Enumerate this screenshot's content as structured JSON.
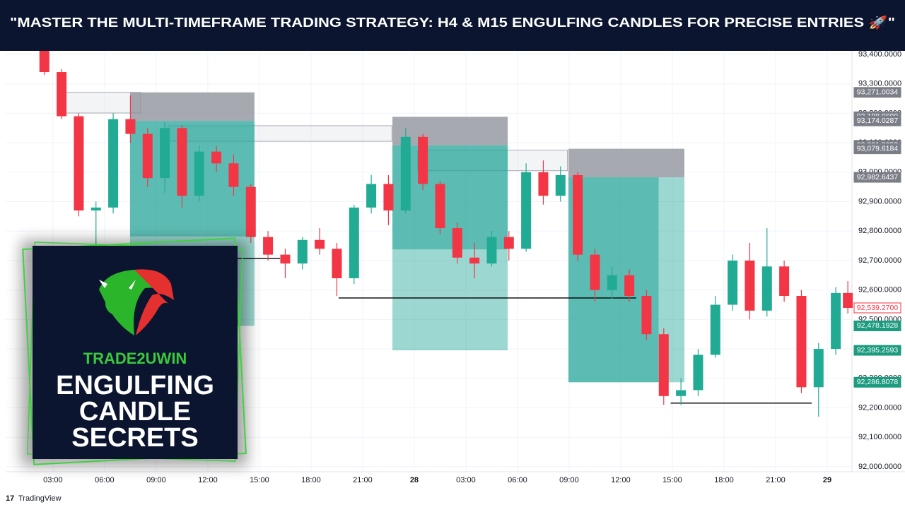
{
  "chart_data": {
    "type": "candlestick",
    "title": "\"MASTER THE MULTI-TIMEFRAME TRADING STRATEGY: H4 & M15 ENGULFING CANDLES FOR PRECISE ENTRIES 🚀\"",
    "watermark": "TradingView",
    "up_color": "#22ab94",
    "down_color": "#f23645",
    "grid": true,
    "x": [
      2.5,
      3.5,
      4.5,
      5.5,
      6.5,
      7.5,
      8.5,
      9.5,
      10.5,
      11.5,
      12.5,
      13.5,
      14.5,
      15.5,
      16.5,
      17.5,
      18.5,
      19.5,
      20.5,
      21.5,
      22.5,
      23.5,
      24.5,
      25.5,
      26.5,
      27.5,
      28.5,
      29.5,
      30.5,
      31.5,
      32.5,
      33.5,
      34.5,
      35.5,
      36.5,
      37.5,
      38.5,
      39.5,
      40.5,
      41.5,
      42.5,
      43.5,
      44.5,
      45.5,
      46.5,
      47.5,
      48.5,
      49.2
    ],
    "open": [
      93420,
      93340,
      93190,
      92870,
      92880,
      93180,
      93130,
      92980,
      93150,
      92920,
      93070,
      93030,
      92950,
      92780,
      92720,
      92690,
      92770,
      92740,
      92640,
      92880,
      92960,
      92870,
      93120,
      92960,
      92810,
      92710,
      92690,
      92780,
      92740,
      93000,
      92920,
      92990,
      92720,
      92600,
      92650,
      92580,
      92450,
      92240,
      92260,
      92380,
      92550,
      92700,
      92530,
      92680,
      92580,
      92270,
      92400,
      92590
    ],
    "high": [
      93440,
      93350,
      93200,
      92900,
      93200,
      93260,
      93150,
      93170,
      93160,
      93090,
      93090,
      93060,
      92960,
      92800,
      92740,
      92780,
      92810,
      92760,
      92890,
      92990,
      92990,
      93150,
      93130,
      92970,
      92830,
      92760,
      92800,
      92800,
      93030,
      93040,
      93020,
      93000,
      92740,
      92680,
      92670,
      92600,
      92470,
      92300,
      92400,
      92580,
      92720,
      92760,
      92810,
      92700,
      92600,
      92420,
      92610,
      92630
    ],
    "low": [
      93330,
      93180,
      92850,
      92630,
      92860,
      93100,
      92950,
      92930,
      92880,
      92900,
      93000,
      92920,
      92760,
      92700,
      92640,
      92670,
      92720,
      92580,
      92620,
      92860,
      92820,
      92860,
      92940,
      92790,
      92690,
      92640,
      92680,
      92700,
      92730,
      92890,
      92900,
      92700,
      92560,
      92570,
      92560,
      92430,
      92210,
      92210,
      92240,
      92370,
      92530,
      92500,
      92510,
      92560,
      92250,
      92170,
      92380,
      92520
    ],
    "close": [
      93340,
      93190,
      92870,
      92880,
      93180,
      93130,
      92980,
      93150,
      92920,
      93070,
      93030,
      92950,
      92780,
      92720,
      92690,
      92770,
      92740,
      92640,
      92880,
      92960,
      92870,
      93120,
      92960,
      92810,
      92710,
      92690,
      92780,
      92740,
      93000,
      92920,
      92990,
      92720,
      92600,
      92650,
      92580,
      92450,
      92240,
      92260,
      92380,
      92550,
      92700,
      92530,
      92680,
      92580,
      92270,
      92400,
      92590,
      92539.27
    ],
    "xlim": [
      0.25,
      49.44
    ],
    "ylim": [
      91983,
      93412
    ],
    "xticks": [
      {
        "value": 3,
        "label": "03:00"
      },
      {
        "value": 6,
        "label": "06:00"
      },
      {
        "value": 9,
        "label": "09:00"
      },
      {
        "value": 12,
        "label": "12:00"
      },
      {
        "value": 15,
        "label": "15:00"
      },
      {
        "value": 18,
        "label": "18:00"
      },
      {
        "value": 21,
        "label": "21:00"
      },
      {
        "value": 24,
        "label": "28"
      },
      {
        "value": 27,
        "label": "03:00"
      },
      {
        "value": 30,
        "label": "06:00"
      },
      {
        "value": 33,
        "label": "09:00"
      },
      {
        "value": 36,
        "label": "12:00"
      },
      {
        "value": 39,
        "label": "15:00"
      },
      {
        "value": 42,
        "label": "18:00"
      },
      {
        "value": 45,
        "label": "21:00"
      },
      {
        "value": 48,
        "label": "29"
      }
    ],
    "yticks": [
      {
        "value": 92000,
        "label": "92,000.0000"
      },
      {
        "value": 92100,
        "label": "92,100.0000"
      },
      {
        "value": 92200,
        "label": "92,200.0000"
      },
      {
        "value": 92300,
        "label": "92,300.0000"
      },
      {
        "value": 92400,
        "label": "92,400.0000"
      },
      {
        "value": 92500,
        "label": "92,500.0000"
      },
      {
        "value": 92600,
        "label": "92,600.0000"
      },
      {
        "value": 92700,
        "label": "92,700.0000"
      },
      {
        "value": 92800,
        "label": "92,800.0000"
      },
      {
        "value": 92900,
        "label": "92,900.0000"
      },
      {
        "value": 93000,
        "label": "93,000.0000"
      },
      {
        "value": 93100,
        "label": "93,100.0000"
      },
      {
        "value": 93200,
        "label": "93,200.0000"
      },
      {
        "value": 93300,
        "label": "93,300.0000"
      },
      {
        "value": 93400,
        "label": "93,400.0000"
      }
    ],
    "positions": [
      {
        "start": 7.48,
        "end": 14.71,
        "stop": 93271.0034,
        "entry": 93174.0287,
        "target": 92478.1928,
        "fill_end": 14.71,
        "fill_price": 92782
      },
      {
        "start": 22.73,
        "end": 29.43,
        "stop": 93188.0699,
        "entry": 93091.0952,
        "target": 92395.2593,
        "fill_end": 29.43,
        "fill_price": 92738
      },
      {
        "start": 32.96,
        "end": 39.7,
        "stop": 93079.6184,
        "entry": 92982.6437,
        "target": 92286.8078,
        "fill_end": 38.2,
        "fill_price": 92286.8078
      }
    ],
    "zones": [
      {
        "start": 3.5,
        "end": 8.1,
        "top": 93271,
        "bottom": 93201
      },
      {
        "start": 9.7,
        "end": 22.7,
        "top": 93158,
        "bottom": 93105
      },
      {
        "start": 24.2,
        "end": 32.9,
        "top": 93075,
        "bottom": 93005
      }
    ],
    "levels": [
      {
        "start": 5.5,
        "end": 16.2,
        "value": 92707
      },
      {
        "start": 19.6,
        "end": 36.9,
        "value": 92573
      },
      {
        "start": 38.9,
        "end": 47.1,
        "value": 92216
      }
    ],
    "price_markers": [
      {
        "value": 93271.0034,
        "label": "93,271.0034",
        "color": "#7b7e87"
      },
      {
        "value": 93188.0699,
        "label": "93,188.0699",
        "color": "#7b7e87"
      },
      {
        "value": 93174.0287,
        "label": "93,174.0287",
        "color": "#7b7e87"
      },
      {
        "value": 93091.0952,
        "label": "93,091.0952",
        "color": "#7b7e87"
      },
      {
        "value": 93079.6184,
        "label": "93,079.6184",
        "color": "#7b7e87"
      },
      {
        "value": 92982.6437,
        "label": "92,982.6437",
        "color": "#7b7e87"
      },
      {
        "value": 92539.27,
        "label": "92,539.2700",
        "color": "#f23645"
      },
      {
        "value": 92478.1928,
        "label": "92,478.1928",
        "color": "#1d9b7f"
      },
      {
        "value": 92395.2593,
        "label": "92,395.2593",
        "color": "#1d9b7f"
      },
      {
        "value": 92286.8078,
        "label": "92,286.8078",
        "color": "#1d9b7f"
      }
    ],
    "overlay": {
      "brand": "TRADE2UWIN",
      "headline": [
        "ENGULFING",
        "CANDLE",
        "SECRETS"
      ]
    }
  }
}
